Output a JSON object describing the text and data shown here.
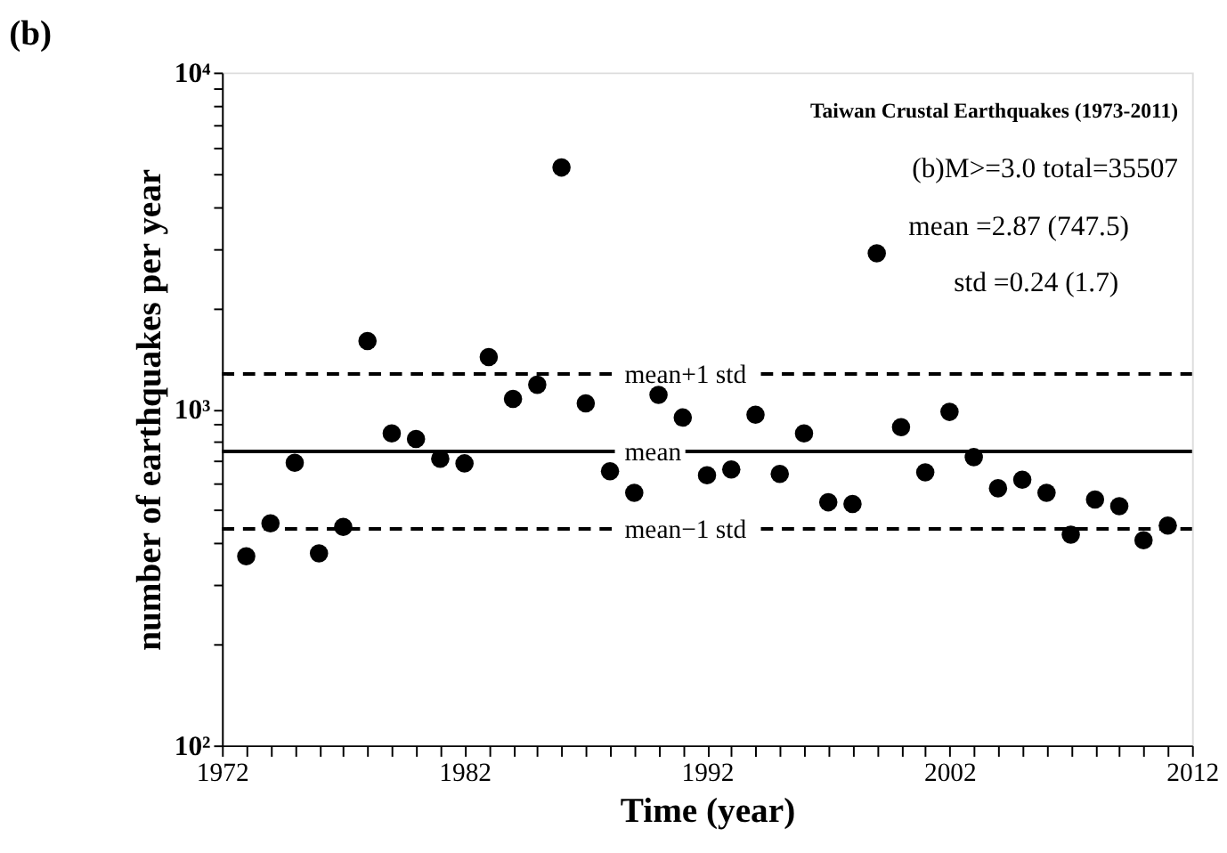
{
  "chart_data": {
    "type": "scatter",
    "title": "(b)",
    "xlabel": "Time (year)",
    "ylabel": "number of earthquakes per year",
    "x": [
      1973,
      1974,
      1975,
      1976,
      1977,
      1978,
      1979,
      1980,
      1981,
      1982,
      1983,
      1984,
      1985,
      1986,
      1987,
      1988,
      1989,
      1990,
      1991,
      1992,
      1993,
      1994,
      1995,
      1996,
      1997,
      1998,
      1999,
      2000,
      2001,
      2002,
      2003,
      2004,
      2005,
      2006,
      2007,
      2008,
      2009,
      2010,
      2011
    ],
    "series": [
      {
        "color": "#000000",
        "values": [
          365,
          457,
          692,
          372,
          446,
          1591,
          846,
          814,
          711,
          689,
          1427,
          1071,
          1180,
          5220,
          1039,
          653,
          563,
          1101,
          943,
          635,
          661,
          961,
          641,
          846,
          528,
          522,
          2900,
          883,
          648,
          980,
          719,
          581,
          616,
          563,
          423,
          538,
          514,
          407,
          450
        ]
      }
    ],
    "marker": "circle",
    "log": "y",
    "grid": false,
    "xlim": [
      1972,
      2012
    ],
    "xticks": [
      1972,
      {
        "value": 1973,
        "label": null
      },
      {
        "value": 1974,
        "label": null
      },
      {
        "value": 1975,
        "label": null
      },
      {
        "value": 1976,
        "label": null
      },
      {
        "value": 1977,
        "label": null
      },
      {
        "value": 1978,
        "label": null
      },
      {
        "value": 1979,
        "label": null
      },
      {
        "value": 1980,
        "label": null
      },
      {
        "value": 1981,
        "label": null
      },
      1982,
      {
        "value": 1983,
        "label": null
      },
      {
        "value": 1984,
        "label": null
      },
      {
        "value": 1985,
        "label": null
      },
      {
        "value": 1986,
        "label": null
      },
      {
        "value": 1987,
        "label": null
      },
      {
        "value": 1988,
        "label": null
      },
      {
        "value": 1989,
        "label": null
      },
      {
        "value": 1990,
        "label": null
      },
      {
        "value": 1991,
        "label": null
      },
      1992,
      {
        "value": 1993,
        "label": null
      },
      {
        "value": 1994,
        "label": null
      },
      {
        "value": 1995,
        "label": null
      },
      {
        "value": 1996,
        "label": null
      },
      {
        "value": 1997,
        "label": null
      },
      {
        "value": 1998,
        "label": null
      },
      {
        "value": 1999,
        "label": null
      },
      {
        "value": 2000,
        "label": null
      },
      {
        "value": 2001,
        "label": null
      },
      2002,
      {
        "value": 2003,
        "label": null
      },
      {
        "value": 2004,
        "label": null
      },
      {
        "value": 2005,
        "label": null
      },
      {
        "value": 2006,
        "label": null
      },
      {
        "value": 2007,
        "label": null
      },
      {
        "value": 2008,
        "label": null
      },
      {
        "value": 2009,
        "label": null
      },
      {
        "value": 2010,
        "label": null
      },
      {
        "value": 2011,
        "label": null
      },
      2012
    ],
    "ylim": [
      100,
      10000
    ],
    "yticks": [
      {
        "value": 100,
        "label": "10²"
      },
      {
        "value": 200,
        "label": null
      },
      {
        "value": 300,
        "label": null
      },
      {
        "value": 400,
        "label": null
      },
      {
        "value": 500,
        "label": null
      },
      {
        "value": 600,
        "label": null
      },
      {
        "value": 700,
        "label": null
      },
      {
        "value": 800,
        "label": null
      },
      {
        "value": 900,
        "label": null
      },
      {
        "value": 1000,
        "label": "10³"
      },
      {
        "value": 2000,
        "label": null
      },
      {
        "value": 3000,
        "label": null
      },
      {
        "value": 4000,
        "label": null
      },
      {
        "value": 5000,
        "label": null
      },
      {
        "value": 6000,
        "label": null
      },
      {
        "value": 7000,
        "label": null
      },
      {
        "value": 8000,
        "label": null
      },
      {
        "value": 9000,
        "label": null
      },
      {
        "value": 10000,
        "label": "10⁴"
      }
    ],
    "ref_lines": [
      {
        "axis": "y",
        "value": 1271,
        "label": "mean+1 std",
        "line_style": "dashed"
      },
      {
        "axis": "y",
        "value": 747.5,
        "label": "mean",
        "line_style": "solid"
      },
      {
        "axis": "y",
        "value": 440,
        "label": "mean−1 std",
        "line_style": "dashed"
      }
    ],
    "annotations": [
      "Taiwan Crustal Earthquakes (1973-2011)",
      "(b)M>=3.0 total=35507",
      "mean =2.87 (747.5)",
      "std =0.24 (1.7)"
    ]
  }
}
